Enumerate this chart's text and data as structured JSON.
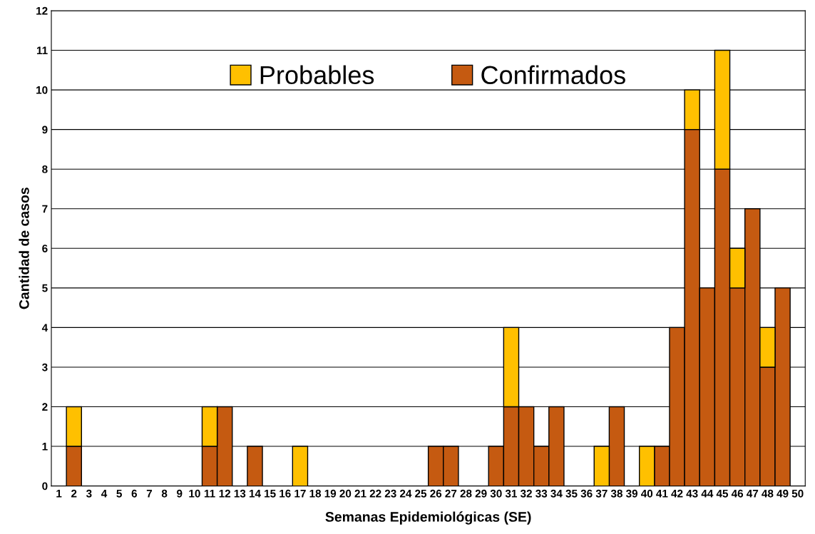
{
  "chart_data": {
    "type": "bar",
    "stacked": true,
    "xlabel": "Semanas Epidemiológicas (SE)",
    "ylabel": "Cantidad de casos",
    "categories": [
      "1",
      "2",
      "3",
      "4",
      "5",
      "6",
      "7",
      "8",
      "9",
      "10",
      "11",
      "12",
      "13",
      "14",
      "15",
      "16",
      "17",
      "18",
      "19",
      "20",
      "21",
      "22",
      "23",
      "24",
      "25",
      "26",
      "27",
      "28",
      "29",
      "30",
      "31",
      "32",
      "33",
      "34",
      "35",
      "36",
      "37",
      "38",
      "39",
      "40",
      "41",
      "42",
      "43",
      "44",
      "45",
      "46",
      "47",
      "48",
      "49",
      "50"
    ],
    "series": [
      {
        "name": "Confirmados",
        "color": "#c55a11",
        "values": [
          0,
          1,
          0,
          0,
          0,
          0,
          0,
          0,
          0,
          0,
          1,
          2,
          0,
          1,
          0,
          0,
          0,
          0,
          0,
          0,
          0,
          0,
          0,
          0,
          0,
          1,
          1,
          0,
          0,
          1,
          2,
          2,
          1,
          2,
          0,
          0,
          0,
          2,
          0,
          0,
          1,
          4,
          9,
          5,
          8,
          5,
          7,
          3,
          5,
          0
        ]
      },
      {
        "name": "Probables",
        "color": "#ffc000",
        "values": [
          0,
          1,
          0,
          0,
          0,
          0,
          0,
          0,
          0,
          0,
          1,
          0,
          0,
          0,
          0,
          0,
          1,
          0,
          0,
          0,
          0,
          0,
          0,
          0,
          0,
          0,
          0,
          0,
          0,
          0,
          2,
          0,
          0,
          0,
          0,
          0,
          1,
          0,
          0,
          1,
          0,
          0,
          1,
          0,
          3,
          1,
          0,
          1,
          0,
          0
        ]
      }
    ],
    "ylim": [
      0,
      12
    ],
    "yticks": [
      0,
      1,
      2,
      3,
      4,
      5,
      6,
      7,
      8,
      9,
      10,
      11,
      12
    ],
    "grid": "y",
    "legend": "top"
  }
}
